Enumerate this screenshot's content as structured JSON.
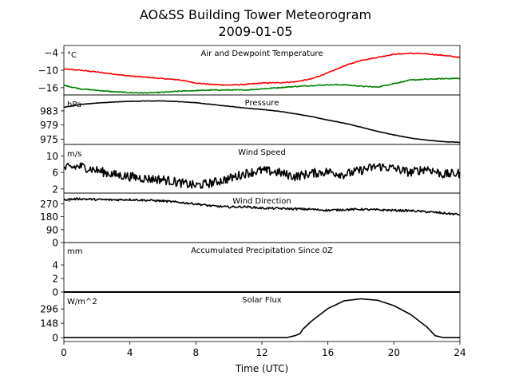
{
  "title_line1": "AO&SS Building Tower Meteorogram",
  "title_line2": "2009-01-05",
  "xlabel": "Time (UTC)",
  "chart_data": [
    {
      "type": "line",
      "title": "Air and Dewpoint Temperature",
      "ylabel": "°C",
      "xlim": [
        0,
        24
      ],
      "ylim": [
        -18.5,
        -1.5
      ],
      "yticks": [
        -4,
        -10,
        -16
      ],
      "ytick_labels": [
        "−4",
        "−10",
        "−16"
      ],
      "series": [
        {
          "color": "#ff0000",
          "x": [
            0,
            1,
            2,
            3,
            4,
            5,
            6,
            7,
            8,
            9,
            10,
            11,
            12,
            13,
            14,
            15,
            16,
            17,
            18,
            19,
            20,
            21,
            22,
            23,
            24
          ],
          "y": [
            -9.6,
            -10.0,
            -10.6,
            -11.3,
            -12.0,
            -12.4,
            -12.9,
            -13.3,
            -14.4,
            -14.9,
            -15.1,
            -14.9,
            -14.4,
            -14.3,
            -14.0,
            -13.0,
            -10.9,
            -8.5,
            -6.6,
            -5.6,
            -4.5,
            -4.2,
            -4.4,
            -4.9,
            -5.6
          ]
        },
        {
          "color": "#008000",
          "x": [
            0,
            1,
            2,
            3,
            4,
            5,
            6,
            7,
            8,
            9,
            10,
            11,
            12,
            13,
            14,
            15,
            16,
            17,
            18,
            19,
            20,
            21,
            22,
            23,
            24
          ],
          "y": [
            -15.2,
            -16.4,
            -16.9,
            -17.4,
            -17.7,
            -17.8,
            -17.6,
            -17.2,
            -17.0,
            -16.8,
            -16.8,
            -16.8,
            -16.4,
            -16.0,
            -15.6,
            -15.3,
            -15.0,
            -15.0,
            -15.5,
            -15.8,
            -14.6,
            -13.4,
            -13.1,
            -12.9,
            -12.8
          ]
        }
      ]
    },
    {
      "type": "line",
      "title": "Pressure",
      "ylabel": "hPa",
      "xlim": [
        0,
        24
      ],
      "ylim": [
        973.5,
        987.5
      ],
      "yticks": [
        983,
        979,
        975
      ],
      "ytick_labels": [
        "983",
        "979",
        "975"
      ],
      "series": [
        {
          "color": "#000000",
          "x": [
            0,
            1,
            2,
            3,
            4,
            5,
            6,
            7,
            8,
            9,
            10,
            11,
            12,
            13,
            14,
            15,
            16,
            17,
            18,
            19,
            20,
            21,
            22,
            23,
            24
          ],
          "y": [
            984.0,
            984.8,
            985.2,
            985.5,
            985.7,
            985.8,
            985.8,
            985.6,
            985.3,
            984.8,
            984.3,
            983.8,
            983.4,
            982.9,
            982.2,
            981.4,
            980.4,
            979.5,
            978.4,
            977.2,
            976.2,
            975.3,
            974.7,
            974.3,
            974.1
          ]
        }
      ]
    },
    {
      "type": "line",
      "title": "Wind Speed",
      "ylabel": "m/s",
      "xlim": [
        0,
        24
      ],
      "ylim": [
        1.0,
        12.8
      ],
      "yticks": [
        10,
        6,
        2
      ],
      "ytick_labels": [
        "10",
        "6",
        "2"
      ],
      "series": [
        {
          "color": "#000000",
          "x": [
            0,
            1,
            2,
            3,
            4,
            5,
            6,
            7,
            8,
            9,
            10,
            11,
            12,
            13,
            14,
            15,
            16,
            17,
            18,
            19,
            20,
            21,
            22,
            23,
            24
          ],
          "y": [
            7.0,
            7.5,
            6.5,
            5.5,
            5.0,
            4.5,
            4.3,
            3.5,
            2.8,
            3.5,
            4.5,
            5.8,
            6.5,
            6.0,
            5.0,
            5.8,
            6.2,
            5.5,
            6.5,
            7.5,
            7.0,
            6.0,
            7.0,
            5.5,
            5.8
          ]
        }
      ]
    },
    {
      "type": "line",
      "title": "Wind Direction",
      "ylabel": "°",
      "xlim": [
        0,
        24
      ],
      "ylim": [
        0,
        345
      ],
      "yticks": [
        270,
        180,
        90,
        0
      ],
      "ytick_labels": [
        "270",
        "180",
        "90",
        "0"
      ],
      "series": [
        {
          "color": "#000000",
          "x": [
            0,
            1,
            2,
            3,
            4,
            5,
            6,
            7,
            8,
            9,
            10,
            11,
            12,
            13,
            14,
            15,
            16,
            17,
            18,
            19,
            20,
            21,
            22,
            23,
            24
          ],
          "y": [
            300,
            305,
            300,
            298,
            300,
            295,
            290,
            280,
            270,
            255,
            248,
            250,
            240,
            238,
            235,
            232,
            225,
            230,
            232,
            228,
            225,
            222,
            215,
            205,
            195
          ]
        }
      ]
    },
    {
      "type": "line",
      "title": "Accumulated Precipitation Since 0Z",
      "ylabel": "mm",
      "xlim": [
        0,
        24
      ],
      "ylim": [
        0,
        7.3
      ],
      "yticks": [
        4,
        2,
        0
      ],
      "ytick_labels": [
        "4",
        "2",
        "0"
      ],
      "series": [
        {
          "color": "#000000",
          "x": [
            0,
            24
          ],
          "y": [
            0,
            0
          ]
        }
      ]
    },
    {
      "type": "line",
      "title": "Solar Flux",
      "ylabel": "W/m^2",
      "xlim": [
        0,
        24
      ],
      "ylim": [
        -40,
        470
      ],
      "yticks": [
        296,
        148,
        0
      ],
      "ytick_labels": [
        "296",
        "148",
        "0"
      ],
      "series": [
        {
          "color": "#000000",
          "x": [
            0,
            13.5,
            14.0,
            14.3,
            14.5,
            15,
            16,
            17,
            18,
            19,
            20,
            21,
            22,
            22.5,
            23,
            24
          ],
          "y": [
            0,
            0,
            20,
            40,
            90,
            170,
            300,
            380,
            400,
            385,
            330,
            240,
            110,
            20,
            0,
            0
          ]
        }
      ]
    }
  ],
  "xaxis": {
    "ticks": [
      0,
      4,
      8,
      12,
      16,
      20,
      24
    ],
    "tick_labels": [
      "0",
      "4",
      "8",
      "12",
      "16",
      "20",
      "24"
    ]
  }
}
